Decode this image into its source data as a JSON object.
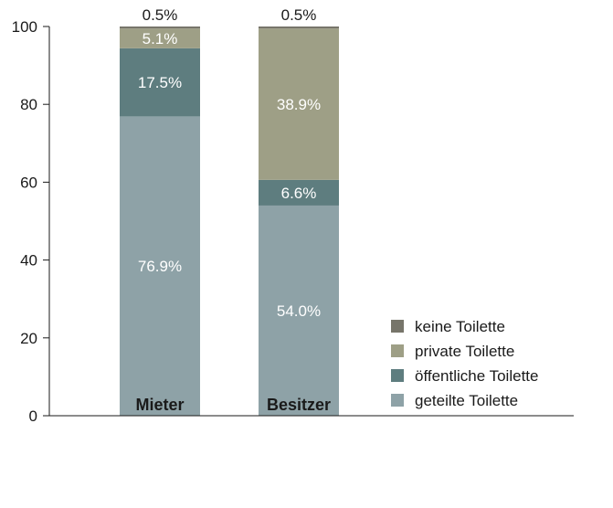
{
  "chart_data": {
    "type": "bar",
    "stacked": true,
    "categories": [
      "Mieter",
      "Besitzer"
    ],
    "series": [
      {
        "name": "geteilte Toilette",
        "values": [
          76.9,
          54.0
        ],
        "labels": [
          "76.9%",
          "54.0%"
        ],
        "color": "#8ea2a7"
      },
      {
        "name": "öffentliche Toilette",
        "values": [
          17.5,
          6.6
        ],
        "labels": [
          "17.5%",
          "6.6%"
        ],
        "color": "#5e7d7f"
      },
      {
        "name": "private Toilette",
        "values": [
          5.1,
          38.9
        ],
        "labels": [
          "5.1%",
          "38.9%"
        ],
        "color": "#9e9f86"
      },
      {
        "name": "keine Toilette",
        "values": [
          0.5,
          0.5
        ],
        "labels": [
          "0.5%",
          "0.5%"
        ],
        "color": "#77756a"
      }
    ],
    "yticks": [
      "0",
      "20",
      "40",
      "60",
      "80",
      "100"
    ],
    "ylim": [
      0,
      100
    ],
    "grid": false,
    "legend_position": "bottom-right",
    "label_colors": {
      "inside": "#ffffff",
      "outside": "#1a1a1a",
      "category": "#1a1a1a"
    }
  }
}
